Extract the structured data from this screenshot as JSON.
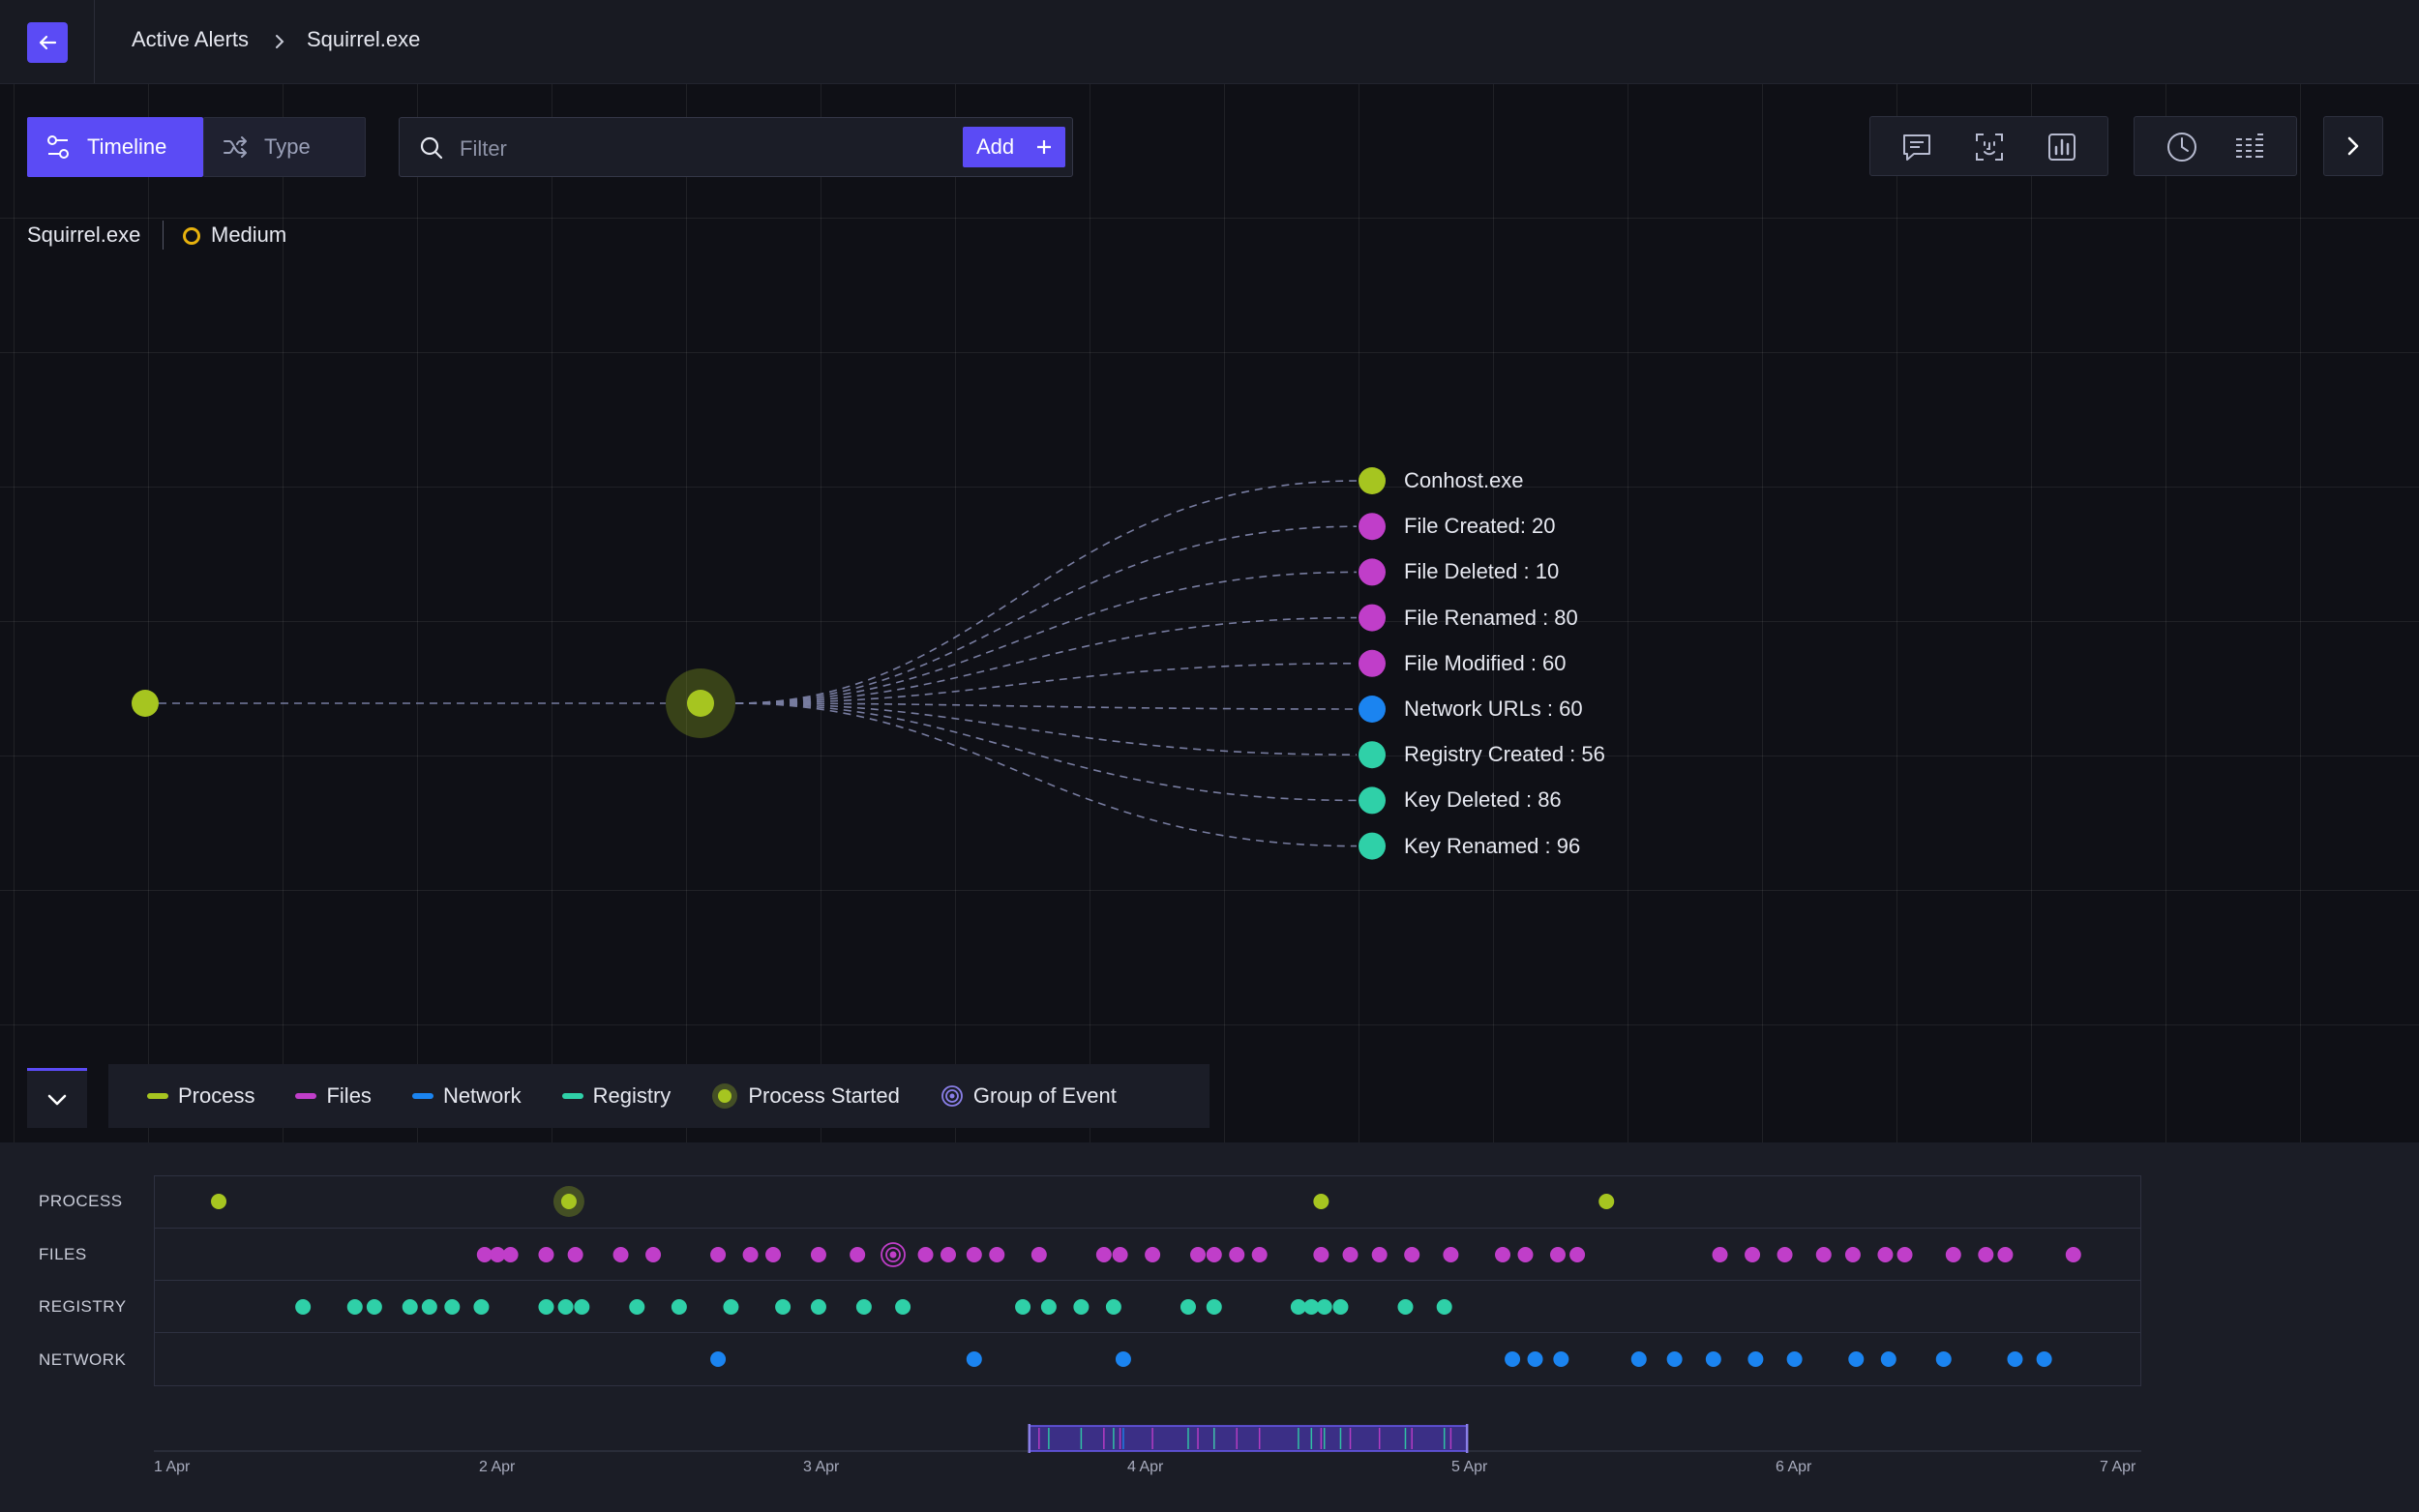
{
  "header": {
    "breadcrumb_parent": "Active Alerts",
    "breadcrumb_current": "Squirrel.exe"
  },
  "view_toggle": {
    "timeline_label": "Timeline",
    "type_label": "Type",
    "active": "Timeline"
  },
  "filter": {
    "placeholder": "Filter",
    "value": "",
    "add_label": "Add"
  },
  "toolbar": {
    "icons": [
      "comment-icon",
      "face-scan-icon",
      "chart-icon",
      "clock-icon",
      "list-bars-icon",
      "chevron-right-icon"
    ]
  },
  "process": {
    "name": "Squirrel.exe",
    "severity": "Medium",
    "severity_color": "#e7b20e"
  },
  "graph": {
    "nodes": [
      {
        "label": "Conhost.exe",
        "category": "process"
      },
      {
        "label": "File Created: 20",
        "category": "files"
      },
      {
        "label": "File Deleted :  10",
        "category": "files"
      },
      {
        "label": "File Renamed :  80",
        "category": "files"
      },
      {
        "label": "File Modified :  60",
        "category": "files"
      },
      {
        "label": "Network URLs :  60",
        "category": "network"
      },
      {
        "label": "Registry Created :  56",
        "category": "registry"
      },
      {
        "label": "Key Deleted :  86",
        "category": "registry"
      },
      {
        "label": "Key Renamed :  96",
        "category": "registry"
      }
    ]
  },
  "legend": {
    "items": [
      {
        "label": "Process",
        "color": "#a6c520"
      },
      {
        "label": "Files",
        "color": "#c03ec9"
      },
      {
        "label": "Network",
        "color": "#1b84f0"
      },
      {
        "label": "Registry",
        "color": "#2fd0a8"
      }
    ],
    "process_started_label": "Process Started",
    "group_event_label": "Group of Event"
  },
  "colors": {
    "accent": "#5b4bf5",
    "process": "#a6c520",
    "files": "#c03ec9",
    "network": "#1b84f0",
    "registry": "#2fd0a8"
  },
  "timeline": {
    "lanes": [
      "PROCESS",
      "FILES",
      "REGISTRY",
      "NETWORK"
    ],
    "axis_ticks": [
      "1 Apr",
      "2 Apr",
      "3 Apr",
      "4 Apr",
      "5 Apr",
      "6 Apr",
      "7 Apr"
    ],
    "range_days": [
      0,
      6
    ],
    "events": {
      "process": [
        0.2,
        1.28,
        3.6,
        4.48
      ],
      "process_started": [
        1.28
      ],
      "files": [
        1.02,
        1.06,
        1.1,
        1.21,
        1.3,
        1.44,
        1.54,
        1.74,
        1.84,
        1.91,
        2.05,
        2.17,
        2.38,
        2.45,
        2.53,
        2.6,
        2.73,
        2.93,
        2.98,
        3.08,
        3.22,
        3.27,
        3.34,
        3.41,
        3.6,
        3.69,
        3.78,
        3.88,
        4.0,
        4.16,
        4.23,
        4.33,
        4.39,
        4.83,
        4.93,
        5.03,
        5.15,
        5.24,
        5.34,
        5.4,
        5.55,
        5.65,
        5.71,
        5.92
      ],
      "files_group": [
        2.28
      ],
      "registry": [
        0.46,
        0.62,
        0.68,
        0.79,
        0.85,
        0.92,
        1.01,
        1.21,
        1.27,
        1.32,
        1.49,
        1.62,
        1.78,
        1.94,
        2.05,
        2.19,
        2.31,
        2.68,
        2.76,
        2.86,
        2.96,
        3.19,
        3.27,
        3.53,
        3.57,
        3.61,
        3.66,
        3.86,
        3.98
      ],
      "network": [
        1.74,
        2.53,
        2.99,
        4.19,
        4.26,
        4.34,
        4.58,
        4.69,
        4.81,
        4.94,
        5.06,
        5.25,
        5.35,
        5.52,
        5.74,
        5.83
      ]
    },
    "brush": {
      "start_day": 2.7,
      "end_day": 4.05
    }
  }
}
